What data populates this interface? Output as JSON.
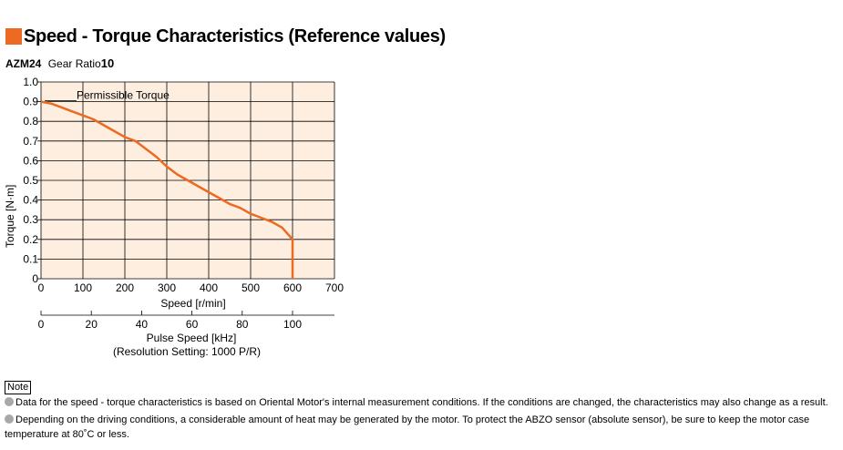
{
  "header": {
    "title": "Speed - Torque Characteristics (Reference values)",
    "accent_color": "#ec6a21"
  },
  "model": {
    "name": "AZM24",
    "gear_ratio_label": "Gear Ratio",
    "gear_ratio_value": "10"
  },
  "chart_data": {
    "type": "line",
    "title": "",
    "xlabel": "Speed [r/min]",
    "ylabel": "Torque [N·m]",
    "xlim": [
      0,
      700
    ],
    "ylim": [
      0,
      1.0
    ],
    "x_ticks": [
      "0",
      "100",
      "200",
      "300",
      "400",
      "500",
      "600",
      "700"
    ],
    "y_ticks": [
      "0",
      "0.1",
      "0.2",
      "0.3",
      "0.4",
      "0.5",
      "0.6",
      "0.7",
      "0.8",
      "0.9",
      "1.0"
    ],
    "grid": true,
    "plot_background": "#fdeee0",
    "line_color": "#ec6a21",
    "series": [
      {
        "name": "Permissible Torque",
        "x": [
          0,
          25,
          50,
          75,
          100,
          125,
          150,
          175,
          200,
          225,
          250,
          275,
          300,
          325,
          350,
          375,
          400,
          425,
          450,
          475,
          500,
          525,
          550,
          575,
          600,
          600
        ],
        "y": [
          0.9,
          0.89,
          0.87,
          0.85,
          0.83,
          0.81,
          0.78,
          0.75,
          0.72,
          0.7,
          0.66,
          0.62,
          0.57,
          0.53,
          0.5,
          0.47,
          0.44,
          0.41,
          0.38,
          0.36,
          0.33,
          0.31,
          0.29,
          0.26,
          0.2,
          0
        ]
      }
    ],
    "annotation": "Permissible Torque",
    "secondary_axis": {
      "label": "Pulse Speed [kHz]",
      "sublabel": "(Resolution Setting: 1000 P/R)",
      "range": [
        0,
        116.67
      ],
      "ticks": [
        "0",
        "20",
        "40",
        "60",
        "80",
        "100"
      ]
    }
  },
  "notes": {
    "label": "Note",
    "items": [
      "Data for the speed - torque characteristics is based on Oriental Motor's internal measurement conditions. If the conditions are changed, the characteristics may also change as a result.",
      "Depending on the driving conditions, a considerable amount of heat may be generated by the motor. To protect the ABZO sensor (absolute sensor), be sure to keep the motor case temperature at 80˚C or less."
    ]
  }
}
